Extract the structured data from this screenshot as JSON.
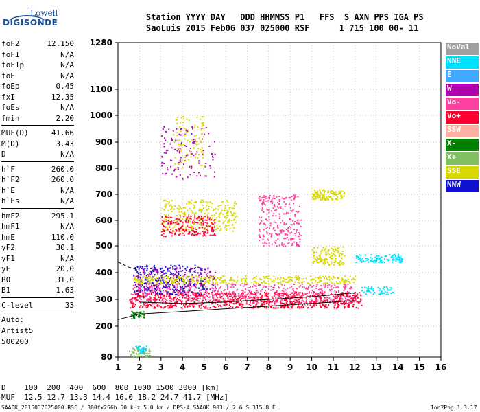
{
  "logo": {
    "line1": "Lowell",
    "line2": "DIGISONDE"
  },
  "header": {
    "row1": "Station YYYY DAY   DDD HHMMSS P1   FFS  S AXN PPS IGA PS",
    "row2": "SaoLuis 2015 Feb06 037 025000 RSF      1 715 100 00- 11"
  },
  "params": {
    "group1": [
      {
        "k": "foF2",
        "v": "12.150"
      },
      {
        "k": "foF1",
        "v": "N/A"
      },
      {
        "k": "foF1p",
        "v": "N/A"
      },
      {
        "k": "foE",
        "v": "N/A"
      },
      {
        "k": "foEp",
        "v": "0.45"
      },
      {
        "k": "fxI",
        "v": "12.35"
      },
      {
        "k": "foEs",
        "v": "N/A"
      },
      {
        "k": "fmin",
        "v": "2.20"
      }
    ],
    "group2": [
      {
        "k": "MUF(D)",
        "v": "41.66"
      },
      {
        "k": "M(D)",
        "v": "3.43"
      },
      {
        "k": "D",
        "v": "N/A"
      }
    ],
    "group3": [
      {
        "k": "h`F",
        "v": "260.0"
      },
      {
        "k": "h`F2",
        "v": "260.0"
      },
      {
        "k": "h`E",
        "v": "N/A"
      },
      {
        "k": "h`Es",
        "v": "N/A"
      }
    ],
    "group4": [
      {
        "k": "hmF2",
        "v": "295.1"
      },
      {
        "k": "hmF1",
        "v": "N/A"
      },
      {
        "k": "hmE",
        "v": "110.0"
      },
      {
        "k": "yF2",
        "v": "30.1"
      },
      {
        "k": "yF1",
        "v": "N/A"
      },
      {
        "k": "yE",
        "v": "20.0"
      },
      {
        "k": "B0",
        "v": "31.0"
      },
      {
        "k": "B1",
        "v": "1.63"
      }
    ],
    "group5": [
      {
        "k": "C-level",
        "v": "33"
      }
    ],
    "auto": [
      "Auto:",
      "Artist5",
      "500200"
    ]
  },
  "legend": [
    {
      "label": "NoVal",
      "color": "#a0a0a0"
    },
    {
      "label": "NNE",
      "color": "#00e0ff"
    },
    {
      "label": "E",
      "color": "#40a8ff"
    },
    {
      "label": "W",
      "color": "#b000b0"
    },
    {
      "label": "Vo-",
      "color": "#ff40a0"
    },
    {
      "label": "Vo+",
      "color": "#ff0030"
    },
    {
      "label": "SSW",
      "color": "#ffb0a0"
    },
    {
      "label": "X-",
      "color": "#008000"
    },
    {
      "label": "X+",
      "color": "#80c060"
    },
    {
      "label": "SSE",
      "color": "#d8d800"
    },
    {
      "label": "NNW",
      "color": "#1010d0"
    }
  ],
  "bottom": {
    "d_row": "D    100  200  400  600  800 1000 1500 3000 [km]",
    "muf_row": "MUF  12.5 12.7 13.3 14.4 16.0 18.2 24.7 41.7 [MHz]"
  },
  "footer": {
    "left": "SAA0K_2015037025000.RSF / 300fx256h 50 kHz 5.0 km / DPS-4 SAA0K 903 / 2.6 S 315.8 E",
    "right": "Ion2Png 1.3.17"
  },
  "chart_data": {
    "type": "scatter",
    "x_ticks": [
      1,
      2,
      3,
      4,
      5,
      6,
      7,
      8,
      9,
      10,
      11,
      12,
      13,
      14,
      15,
      16
    ],
    "y_ticks": [
      80,
      200,
      300,
      400,
      500,
      600,
      700,
      800,
      900,
      1000,
      1100,
      1280
    ],
    "xlim": [
      1,
      16
    ],
    "ylim": [
      80,
      1280
    ],
    "xlabel": "",
    "ylabel": "",
    "grid": true,
    "legend_position": "right",
    "clusters": [
      {
        "name": "Vo+",
        "color": "#ff0030",
        "x": [
          1.5,
          12.3
        ],
        "y": [
          270,
          330
        ],
        "n": 900
      },
      {
        "name": "Vo-",
        "color": "#ff40a0",
        "x": [
          1.6,
          12.0
        ],
        "y": [
          290,
          360
        ],
        "n": 500
      },
      {
        "name": "NNW",
        "color": "#1010d0",
        "x": [
          1.7,
          5.0
        ],
        "y": [
          320,
          430
        ],
        "n": 250
      },
      {
        "name": "W",
        "color": "#b000b0",
        "x": [
          1.7,
          5.5
        ],
        "y": [
          330,
          420
        ],
        "n": 180
      },
      {
        "name": "SSE",
        "color": "#d8d800",
        "x": [
          1.7,
          12.0
        ],
        "y": [
          360,
          390
        ],
        "n": 400
      },
      {
        "name": "SSE",
        "color": "#d8d800",
        "x": [
          3.0,
          6.5
        ],
        "y": [
          560,
          680
        ],
        "n": 300
      },
      {
        "name": "Vo+",
        "color": "#ff0030",
        "x": [
          3.0,
          5.5
        ],
        "y": [
          540,
          620
        ],
        "n": 200
      },
      {
        "name": "W",
        "color": "#b000b0",
        "x": [
          3.0,
          5.5
        ],
        "y": [
          760,
          960
        ],
        "n": 120
      },
      {
        "name": "SSE",
        "color": "#d8d800",
        "x": [
          3.5,
          5.0
        ],
        "y": [
          800,
          1000
        ],
        "n": 100
      },
      {
        "name": "Vo-",
        "color": "#ff40a0",
        "x": [
          7.5,
          9.5
        ],
        "y": [
          500,
          700
        ],
        "n": 250
      },
      {
        "name": "SSE",
        "color": "#d8d800",
        "x": [
          10.0,
          11.5
        ],
        "y": [
          680,
          720
        ],
        "n": 120
      },
      {
        "name": "SSE",
        "color": "#d8d800",
        "x": [
          10.0,
          11.5
        ],
        "y": [
          430,
          500
        ],
        "n": 140
      },
      {
        "name": "NNE",
        "color": "#00e0ff",
        "x": [
          12.0,
          14.2
        ],
        "y": [
          440,
          470
        ],
        "n": 120
      },
      {
        "name": "NNE",
        "color": "#00e0ff",
        "x": [
          12.3,
          13.8
        ],
        "y": [
          320,
          350
        ],
        "n": 60
      },
      {
        "name": "X+",
        "color": "#80c060",
        "x": [
          1.5,
          2.5
        ],
        "y": [
          80,
          120
        ],
        "n": 60
      },
      {
        "name": "NNE",
        "color": "#00e0ff",
        "x": [
          1.8,
          2.3
        ],
        "y": [
          95,
          125
        ],
        "n": 30
      },
      {
        "name": "X-",
        "color": "#008000",
        "x": [
          1.6,
          2.2
        ],
        "y": [
          230,
          260
        ],
        "n": 40
      }
    ],
    "curves": [
      {
        "name": "trace-solid",
        "style": "solid",
        "x": [
          1.0,
          2.0,
          4.0,
          6.0,
          8.0,
          10.0,
          12.0
        ],
        "y": [
          225,
          245,
          255,
          265,
          275,
          285,
          295
        ]
      },
      {
        "name": "trace-dashed",
        "style": "dashed",
        "x": [
          1.0,
          1.5,
          2.0
        ],
        "y": [
          440,
          420,
          410
        ]
      },
      {
        "name": "trace-inner",
        "style": "solid",
        "x": [
          2.0,
          4.0,
          6.0,
          8.0,
          10.0,
          12.0
        ],
        "y": [
          290,
          285,
          290,
          300,
          310,
          325
        ]
      }
    ]
  }
}
